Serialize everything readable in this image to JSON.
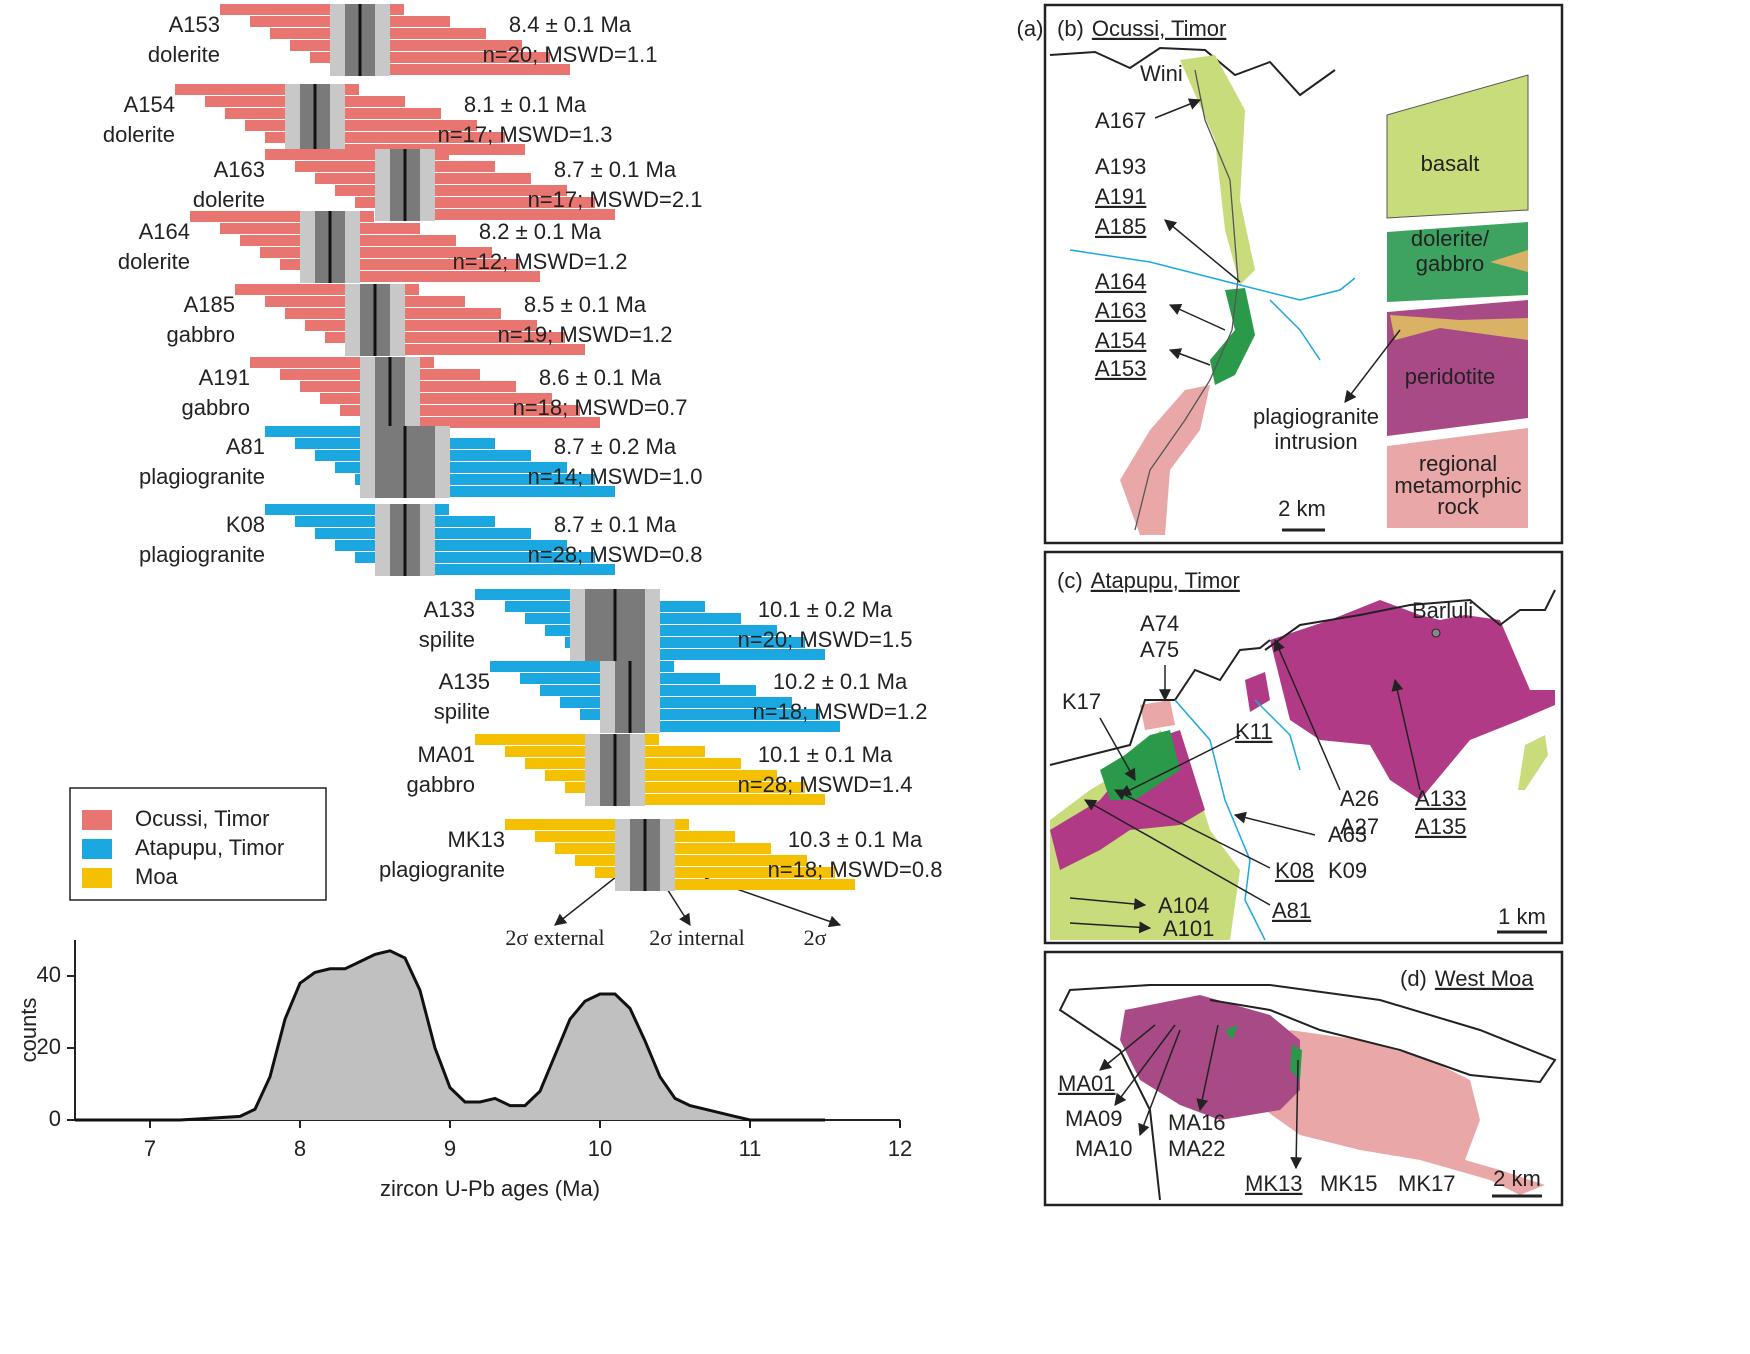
{
  "chart_data": {
    "type": "density",
    "panel_label": "(a)",
    "legend": [
      {
        "name": "Ocussi, Timor",
        "color": "#e8756f"
      },
      {
        "name": "Atapupu, Timor",
        "color": "#1ba8e0"
      },
      {
        "name": "Moa",
        "color": "#f5c000"
      }
    ],
    "samples": [
      {
        "name": "A153",
        "rock": "dolerite",
        "group": 0,
        "age": 8.4,
        "error": 0.1,
        "age_label": "8.4 ± 0.1 Ma",
        "stats": "n=20; MSWD=1.1"
      },
      {
        "name": "A154",
        "rock": "dolerite",
        "group": 0,
        "age": 8.1,
        "error": 0.1,
        "age_label": "8.1 ±  0.1 Ma",
        "stats": "n=17; MSWD=1.3"
      },
      {
        "name": "A163",
        "rock": "dolerite",
        "group": 0,
        "age": 8.7,
        "error": 0.1,
        "age_label": "8.7 ±  0.1 Ma",
        "stats": "n=17; MSWD=2.1"
      },
      {
        "name": "A164",
        "rock": "dolerite",
        "group": 0,
        "age": 8.2,
        "error": 0.1,
        "age_label": "8.2 ±  0.1 Ma",
        "stats": "n=12; MSWD=1.2"
      },
      {
        "name": "A185",
        "rock": "gabbro",
        "group": 0,
        "age": 8.5,
        "error": 0.1,
        "age_label": "8.5 ±  0.1 Ma",
        "stats": "n=19; MSWD=1.2"
      },
      {
        "name": "A191",
        "rock": "gabbro",
        "group": 0,
        "age": 8.6,
        "error": 0.1,
        "age_label": "8.6 ±  0.1 Ma",
        "stats": "n=18; MSWD=0.7"
      },
      {
        "name": "A81",
        "rock": "plagiogranite",
        "group": 1,
        "age": 8.7,
        "error": 0.2,
        "age_label": "8.7 ±  0.2 Ma",
        "stats": "n=14; MSWD=1.0"
      },
      {
        "name": "K08",
        "rock": "plagiogranite",
        "group": 1,
        "age": 8.7,
        "error": 0.1,
        "age_label": "8.7 ±  0.1 Ma",
        "stats": "n=28; MSWD=0.8"
      },
      {
        "name": "A133",
        "rock": "spilite",
        "group": 1,
        "age": 10.1,
        "error": 0.2,
        "age_label": "10.1 ±  0.2 Ma",
        "stats": "n=20; MSWD=1.5"
      },
      {
        "name": "A135",
        "rock": "spilite",
        "group": 1,
        "age": 10.2,
        "error": 0.1,
        "age_label": "10.2 ±  0.1 Ma",
        "stats": "n=18; MSWD=1.2"
      },
      {
        "name": "MA01",
        "rock": "gabbro",
        "group": 2,
        "age": 10.1,
        "error": 0.1,
        "age_label": "10.1 ±  0.1 Ma",
        "stats": "n=28; MSWD=1.4"
      },
      {
        "name": "MK13",
        "rock": "plagiogranite",
        "group": 2,
        "age": 10.3,
        "error": 0.1,
        "age_label": "10.3 ±  0.1 Ma",
        "stats": "n=18; MSWD=0.8"
      }
    ],
    "box_annotations": [
      "2σ external",
      "2σ internal",
      "2σ"
    ],
    "x": [
      6.5,
      6.8,
      7.0,
      7.2,
      7.4,
      7.6,
      7.7,
      7.8,
      7.9,
      8.0,
      8.1,
      8.2,
      8.3,
      8.4,
      8.5,
      8.6,
      8.7,
      8.8,
      8.9,
      9.0,
      9.1,
      9.2,
      9.3,
      9.4,
      9.5,
      9.6,
      9.7,
      9.8,
      9.9,
      10.0,
      10.1,
      10.2,
      10.3,
      10.4,
      10.5,
      10.6,
      10.7,
      10.8,
      10.9,
      11.0,
      11.2,
      11.5
    ],
    "values": [
      0,
      0,
      0,
      0,
      0.5,
      1,
      3,
      12,
      28,
      38,
      41,
      42,
      42,
      44,
      46,
      47,
      45,
      36,
      20,
      9,
      5,
      5,
      6,
      4,
      4,
      8,
      18,
      28,
      33,
      35,
      35,
      31,
      22,
      12,
      6,
      4,
      3,
      2,
      1,
      0,
      0,
      0
    ],
    "color": "#c0c0c0",
    "xlim": [
      6.5,
      12
    ],
    "ylim": [
      0,
      50
    ],
    "xticks": [
      7,
      8,
      9,
      10,
      11,
      12
    ],
    "yticks": [
      0,
      20,
      40
    ],
    "xlabel": "zircon U-Pb ages (Ma)",
    "ylabel": "counts"
  },
  "maps": [
    {
      "tag": "(b)",
      "title": "Ocussi, Timor",
      "labels": [
        {
          "text": "Wini",
          "underline": false
        },
        {
          "text": "A167",
          "underline": false
        },
        {
          "text": "A193",
          "underline": false
        },
        {
          "text": "A191",
          "underline": true
        },
        {
          "text": "A185",
          "underline": true
        },
        {
          "text": "A164",
          "underline": true
        },
        {
          "text": "A163",
          "underline": true
        },
        {
          "text": "A154",
          "underline": true
        },
        {
          "text": "A153",
          "underline": true
        },
        {
          "text": "basalt",
          "underline": false
        },
        {
          "text": "dolerite/",
          "underline": false
        },
        {
          "text": "gabbro",
          "underline": false
        },
        {
          "text": "peridotite",
          "underline": false
        },
        {
          "text": "plagiogranite",
          "underline": false
        },
        {
          "text": "intrusion",
          "underline": false
        },
        {
          "text": "regional",
          "underline": false
        },
        {
          "text": "metamorphic",
          "underline": false
        },
        {
          "text": "rock",
          "underline": false
        },
        {
          "text": "2 km",
          "underline": false
        }
      ]
    },
    {
      "tag": "(c)",
      "title": "Atapupu, Timor",
      "labels": [
        {
          "text": "Barluli",
          "underline": false
        },
        {
          "text": "A74",
          "underline": false
        },
        {
          "text": "A75",
          "underline": false
        },
        {
          "text": "K17",
          "underline": false
        },
        {
          "text": "K11",
          "underline": true
        },
        {
          "text": "A26",
          "underline": false
        },
        {
          "text": "A27",
          "underline": false
        },
        {
          "text": "A133",
          "underline": true
        },
        {
          "text": "A135",
          "underline": true
        },
        {
          "text": "A63",
          "underline": false
        },
        {
          "text": "K08",
          "underline": true
        },
        {
          "text": "K09",
          "underline": false
        },
        {
          "text": "A104",
          "underline": false
        },
        {
          "text": "A81",
          "underline": true
        },
        {
          "text": "A101",
          "underline": false
        },
        {
          "text": "1 km",
          "underline": false
        }
      ]
    },
    {
      "tag": "(d)",
      "title": "West Moa",
      "labels": [
        {
          "text": "MA01",
          "underline": true
        },
        {
          "text": "MA09",
          "underline": false
        },
        {
          "text": "MA10",
          "underline": false
        },
        {
          "text": "MA16",
          "underline": false
        },
        {
          "text": "MA22",
          "underline": false
        },
        {
          "text": "MK13",
          "underline": true
        },
        {
          "text": "MK15",
          "underline": false
        },
        {
          "text": "MK17",
          "underline": false
        },
        {
          "text": "2 km",
          "underline": false
        }
      ]
    }
  ]
}
